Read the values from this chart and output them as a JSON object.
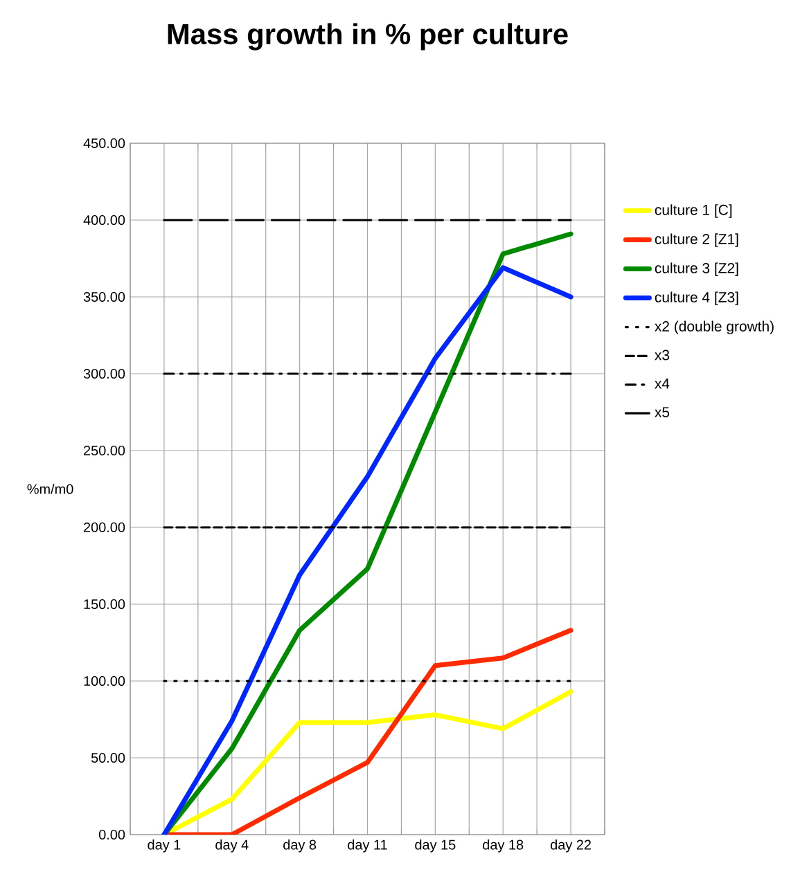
{
  "chart_data": {
    "type": "line",
    "title": "Mass growth in % per culture",
    "ylabel": "%m/m0",
    "categories": [
      "day 1",
      "day 4",
      "day 8",
      "day 11",
      "day 15",
      "day 18",
      "day 22"
    ],
    "series": [
      {
        "name": "culture 1 [C]",
        "color": "#ffff00",
        "values": [
          0,
          23,
          73,
          73,
          78,
          69,
          93
        ]
      },
      {
        "name": "culture 2 [Z1]",
        "color": "#ff2a00",
        "values": [
          0,
          0,
          24,
          47,
          110,
          115,
          133
        ]
      },
      {
        "name": "culture 3 [Z2]",
        "color": "#008a00",
        "values": [
          0,
          56,
          133,
          173,
          275,
          378,
          391
        ]
      },
      {
        "name": "culture 4 [Z3]",
        "color": "#0026ff",
        "values": [
          0,
          74,
          169,
          233,
          310,
          369,
          350
        ]
      },
      {
        "name": "x2 (double growth)",
        "color": "#000000",
        "line_style": "dotted",
        "values": [
          100,
          100,
          100,
          100,
          100,
          100,
          100
        ]
      },
      {
        "name": "x3",
        "color": "#000000",
        "line_style": "dashed",
        "values": [
          200,
          200,
          200,
          200,
          200,
          200,
          200
        ]
      },
      {
        "name": "x4",
        "color": "#000000",
        "line_style": "dashdot",
        "values": [
          300,
          300,
          300,
          300,
          300,
          300,
          300
        ]
      },
      {
        "name": "x5",
        "color": "#000000",
        "line_style": "longdash",
        "values": [
          400,
          400,
          400,
          400,
          400,
          400,
          400
        ]
      }
    ],
    "ylim": [
      0,
      450
    ],
    "yticks": [
      {
        "value": 0,
        "label": "0.00"
      },
      {
        "value": 50,
        "label": "50.00"
      },
      {
        "value": 100,
        "label": "100.00"
      },
      {
        "value": 150,
        "label": "150.00"
      },
      {
        "value": 200,
        "label": "200.00"
      },
      {
        "value": 250,
        "label": "250.00"
      },
      {
        "value": 300,
        "label": "300.00"
      },
      {
        "value": 350,
        "label": "350.00"
      },
      {
        "value": 400,
        "label": "400.00"
      },
      {
        "value": 450,
        "label": "450.00"
      }
    ],
    "grid": true,
    "legend": "right",
    "marker": "none"
  }
}
